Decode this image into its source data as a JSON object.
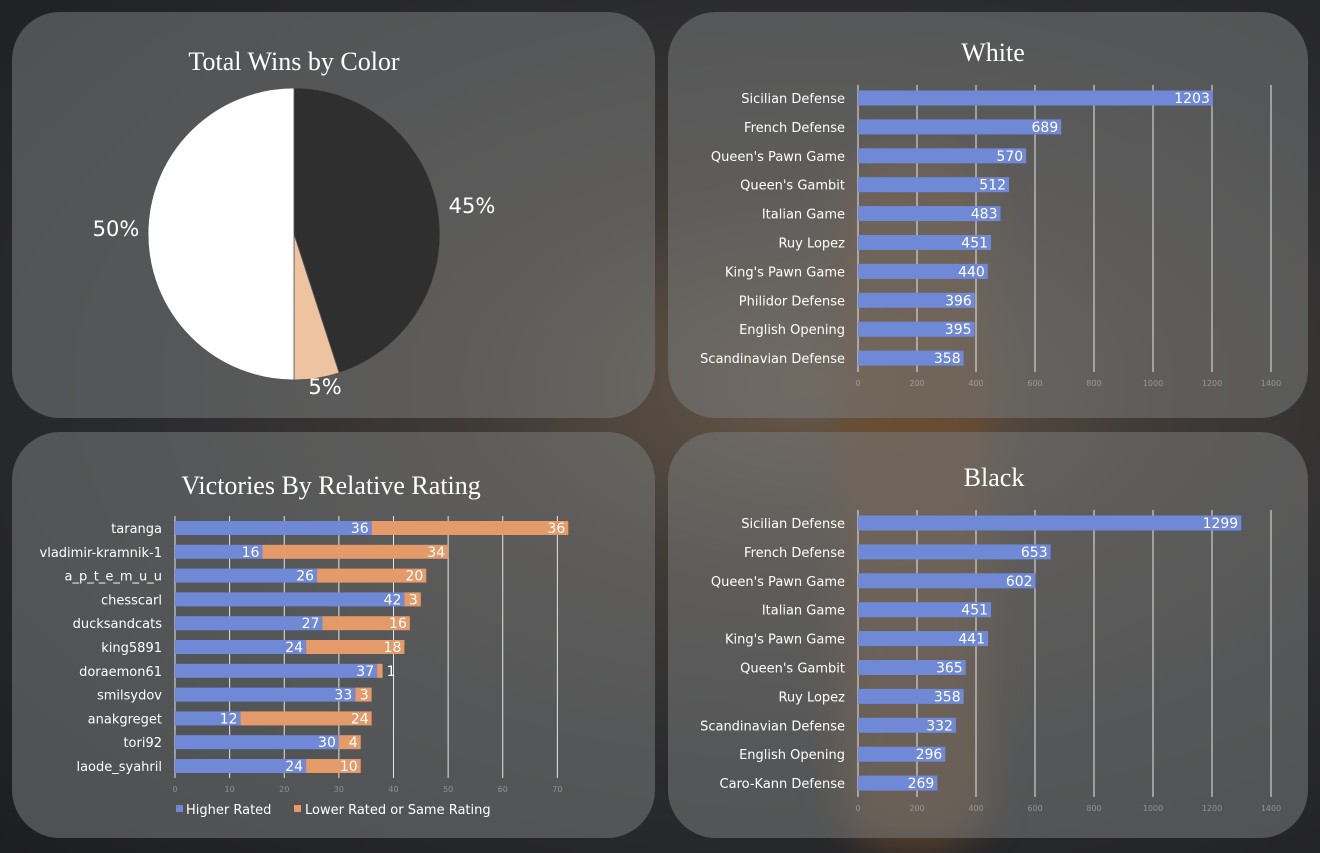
{
  "colors": {
    "blue": "#7089d6",
    "orange": "#e59a6a",
    "black_slice": "#2f2f2f",
    "peach_slice": "#eec3a0",
    "white_slice": "#ffffff"
  },
  "chart_data": [
    {
      "type": "pie",
      "title": "Total Wins by Color",
      "slices": [
        {
          "label": "45%",
          "value": 45,
          "color": "#2f2f2f"
        },
        {
          "label": "5%",
          "value": 5,
          "color": "#eec3a0"
        },
        {
          "label": "50%",
          "value": 50,
          "color": "#ffffff"
        }
      ]
    },
    {
      "type": "bar",
      "orientation": "horizontal",
      "title": "White",
      "categories": [
        "Sicilian Defense",
        "French Defense",
        "Queen's Pawn Game",
        "Queen's Gambit",
        "Italian Game",
        "Ruy Lopez",
        "King's Pawn Game",
        "Philidor Defense",
        "English Opening",
        "Scandinavian Defense"
      ],
      "values": [
        1203,
        689,
        570,
        512,
        483,
        451,
        440,
        396,
        395,
        358
      ],
      "xlim": [
        0,
        1400
      ],
      "xticks": [
        "0",
        "200",
        "400",
        "600",
        "800",
        "1000",
        "1200",
        "1400"
      ],
      "grid": true
    },
    {
      "type": "bar",
      "orientation": "horizontal",
      "stacked": true,
      "title": "Victories By Relative Rating",
      "categories": [
        "taranga",
        "vladimir-kramnik-1",
        "a_p_t_e_m_u_u",
        "chesscarl",
        "ducksandcats",
        "king5891",
        "doraemon61",
        "smilsydov",
        "anakgreget",
        "tori92",
        "laode_syahril"
      ],
      "series": [
        {
          "name": "Higher Rated",
          "values": [
            36,
            16,
            26,
            42,
            27,
            24,
            37,
            33,
            12,
            30,
            24
          ]
        },
        {
          "name": "Lower Rated or Same Rating",
          "values": [
            36,
            34,
            20,
            3,
            16,
            18,
            1,
            3,
            24,
            4,
            10
          ]
        }
      ],
      "xlim": [
        0,
        80
      ],
      "xticks": [
        "0",
        "10",
        "20",
        "30",
        "40",
        "50",
        "60",
        "70"
      ],
      "grid": true,
      "legend": "bottom"
    },
    {
      "type": "bar",
      "orientation": "horizontal",
      "title": "Black",
      "categories": [
        "Sicilian Defense",
        "French Defense",
        "Queen's Pawn Game",
        "Italian Game",
        "King's Pawn Game",
        "Queen's Gambit",
        "Ruy Lopez",
        "Scandinavian Defense",
        "English Opening",
        "Caro-Kann Defense"
      ],
      "values": [
        1299,
        653,
        602,
        451,
        441,
        365,
        358,
        332,
        296,
        269
      ],
      "xlim": [
        0,
        1400
      ],
      "xticks": [
        "0",
        "200",
        "400",
        "600",
        "800",
        "1000",
        "1200",
        "1400"
      ],
      "grid": true
    }
  ]
}
